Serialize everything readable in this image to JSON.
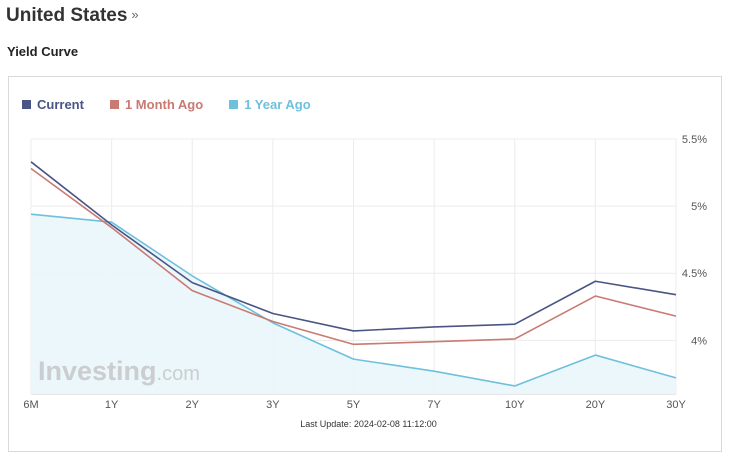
{
  "header": {
    "title": "United States",
    "chevron": "»",
    "subtitle": "Yield Curve"
  },
  "legend": [
    {
      "label": "Current",
      "color": "#4a5585"
    },
    {
      "label": "1 Month Ago",
      "color": "#c97a72"
    },
    {
      "label": "1 Year Ago",
      "color": "#6ec0dc"
    }
  ],
  "watermark": {
    "brand": "Investing",
    "suffix": ".com"
  },
  "footer": {
    "last_update": "Last Update: 2024-02-08 11:12:00"
  },
  "chart_data": {
    "type": "line",
    "categories": [
      "6M",
      "1Y",
      "2Y",
      "3Y",
      "5Y",
      "7Y",
      "10Y",
      "20Y",
      "30Y"
    ],
    "series": [
      {
        "name": "Current",
        "color": "#4a5585",
        "values": [
          5.33,
          4.86,
          4.43,
          4.2,
          4.07,
          4.1,
          4.12,
          4.44,
          4.34
        ]
      },
      {
        "name": "1 Month Ago",
        "color": "#c97a72",
        "values": [
          5.28,
          4.84,
          4.37,
          4.14,
          3.97,
          3.99,
          4.01,
          4.33,
          4.18
        ]
      },
      {
        "name": "1 Year Ago",
        "color": "#6ec0dc",
        "values": [
          4.94,
          4.88,
          4.48,
          4.13,
          3.86,
          3.77,
          3.66,
          3.89,
          3.72
        ]
      }
    ],
    "y_ticks": [
      "5.5%",
      "5%",
      "4.5%",
      "4%"
    ],
    "y_tick_values": [
      5.5,
      5.0,
      4.5,
      4.0
    ],
    "ylim": [
      3.6,
      5.5
    ],
    "area_fill_series": "1 Year Ago",
    "grid": true,
    "legend_position": "top-left"
  }
}
